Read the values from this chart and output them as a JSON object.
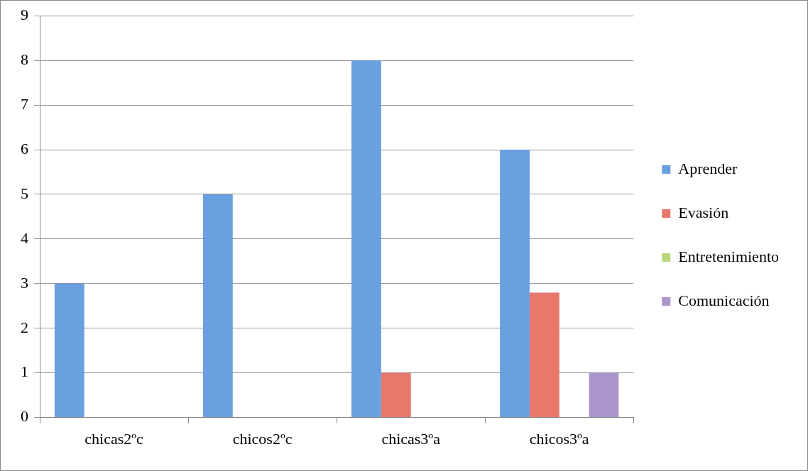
{
  "chart_data": {
    "type": "bar",
    "categories": [
      "chicas2ºc",
      "chicos2ºc",
      "chicas3ºa",
      "chicos3ºa"
    ],
    "series": [
      {
        "name": "Aprender",
        "color": "#6a9fe0",
        "values": [
          3,
          5,
          8,
          6
        ]
      },
      {
        "name": "Evasión",
        "color": "#e8776c",
        "values": [
          0,
          0,
          1,
          2.8
        ]
      },
      {
        "name": "Entretenimiento",
        "color": "#b9d77a",
        "values": [
          0,
          0,
          0,
          0
        ]
      },
      {
        "name": "Comunicación",
        "color": "#ab95cc",
        "values": [
          0,
          0,
          0,
          1
        ]
      }
    ],
    "ylim": [
      0,
      9
    ],
    "yticks": [
      0,
      1,
      2,
      3,
      4,
      5,
      6,
      7,
      8,
      9
    ],
    "grid": "y",
    "legend": "right"
  }
}
